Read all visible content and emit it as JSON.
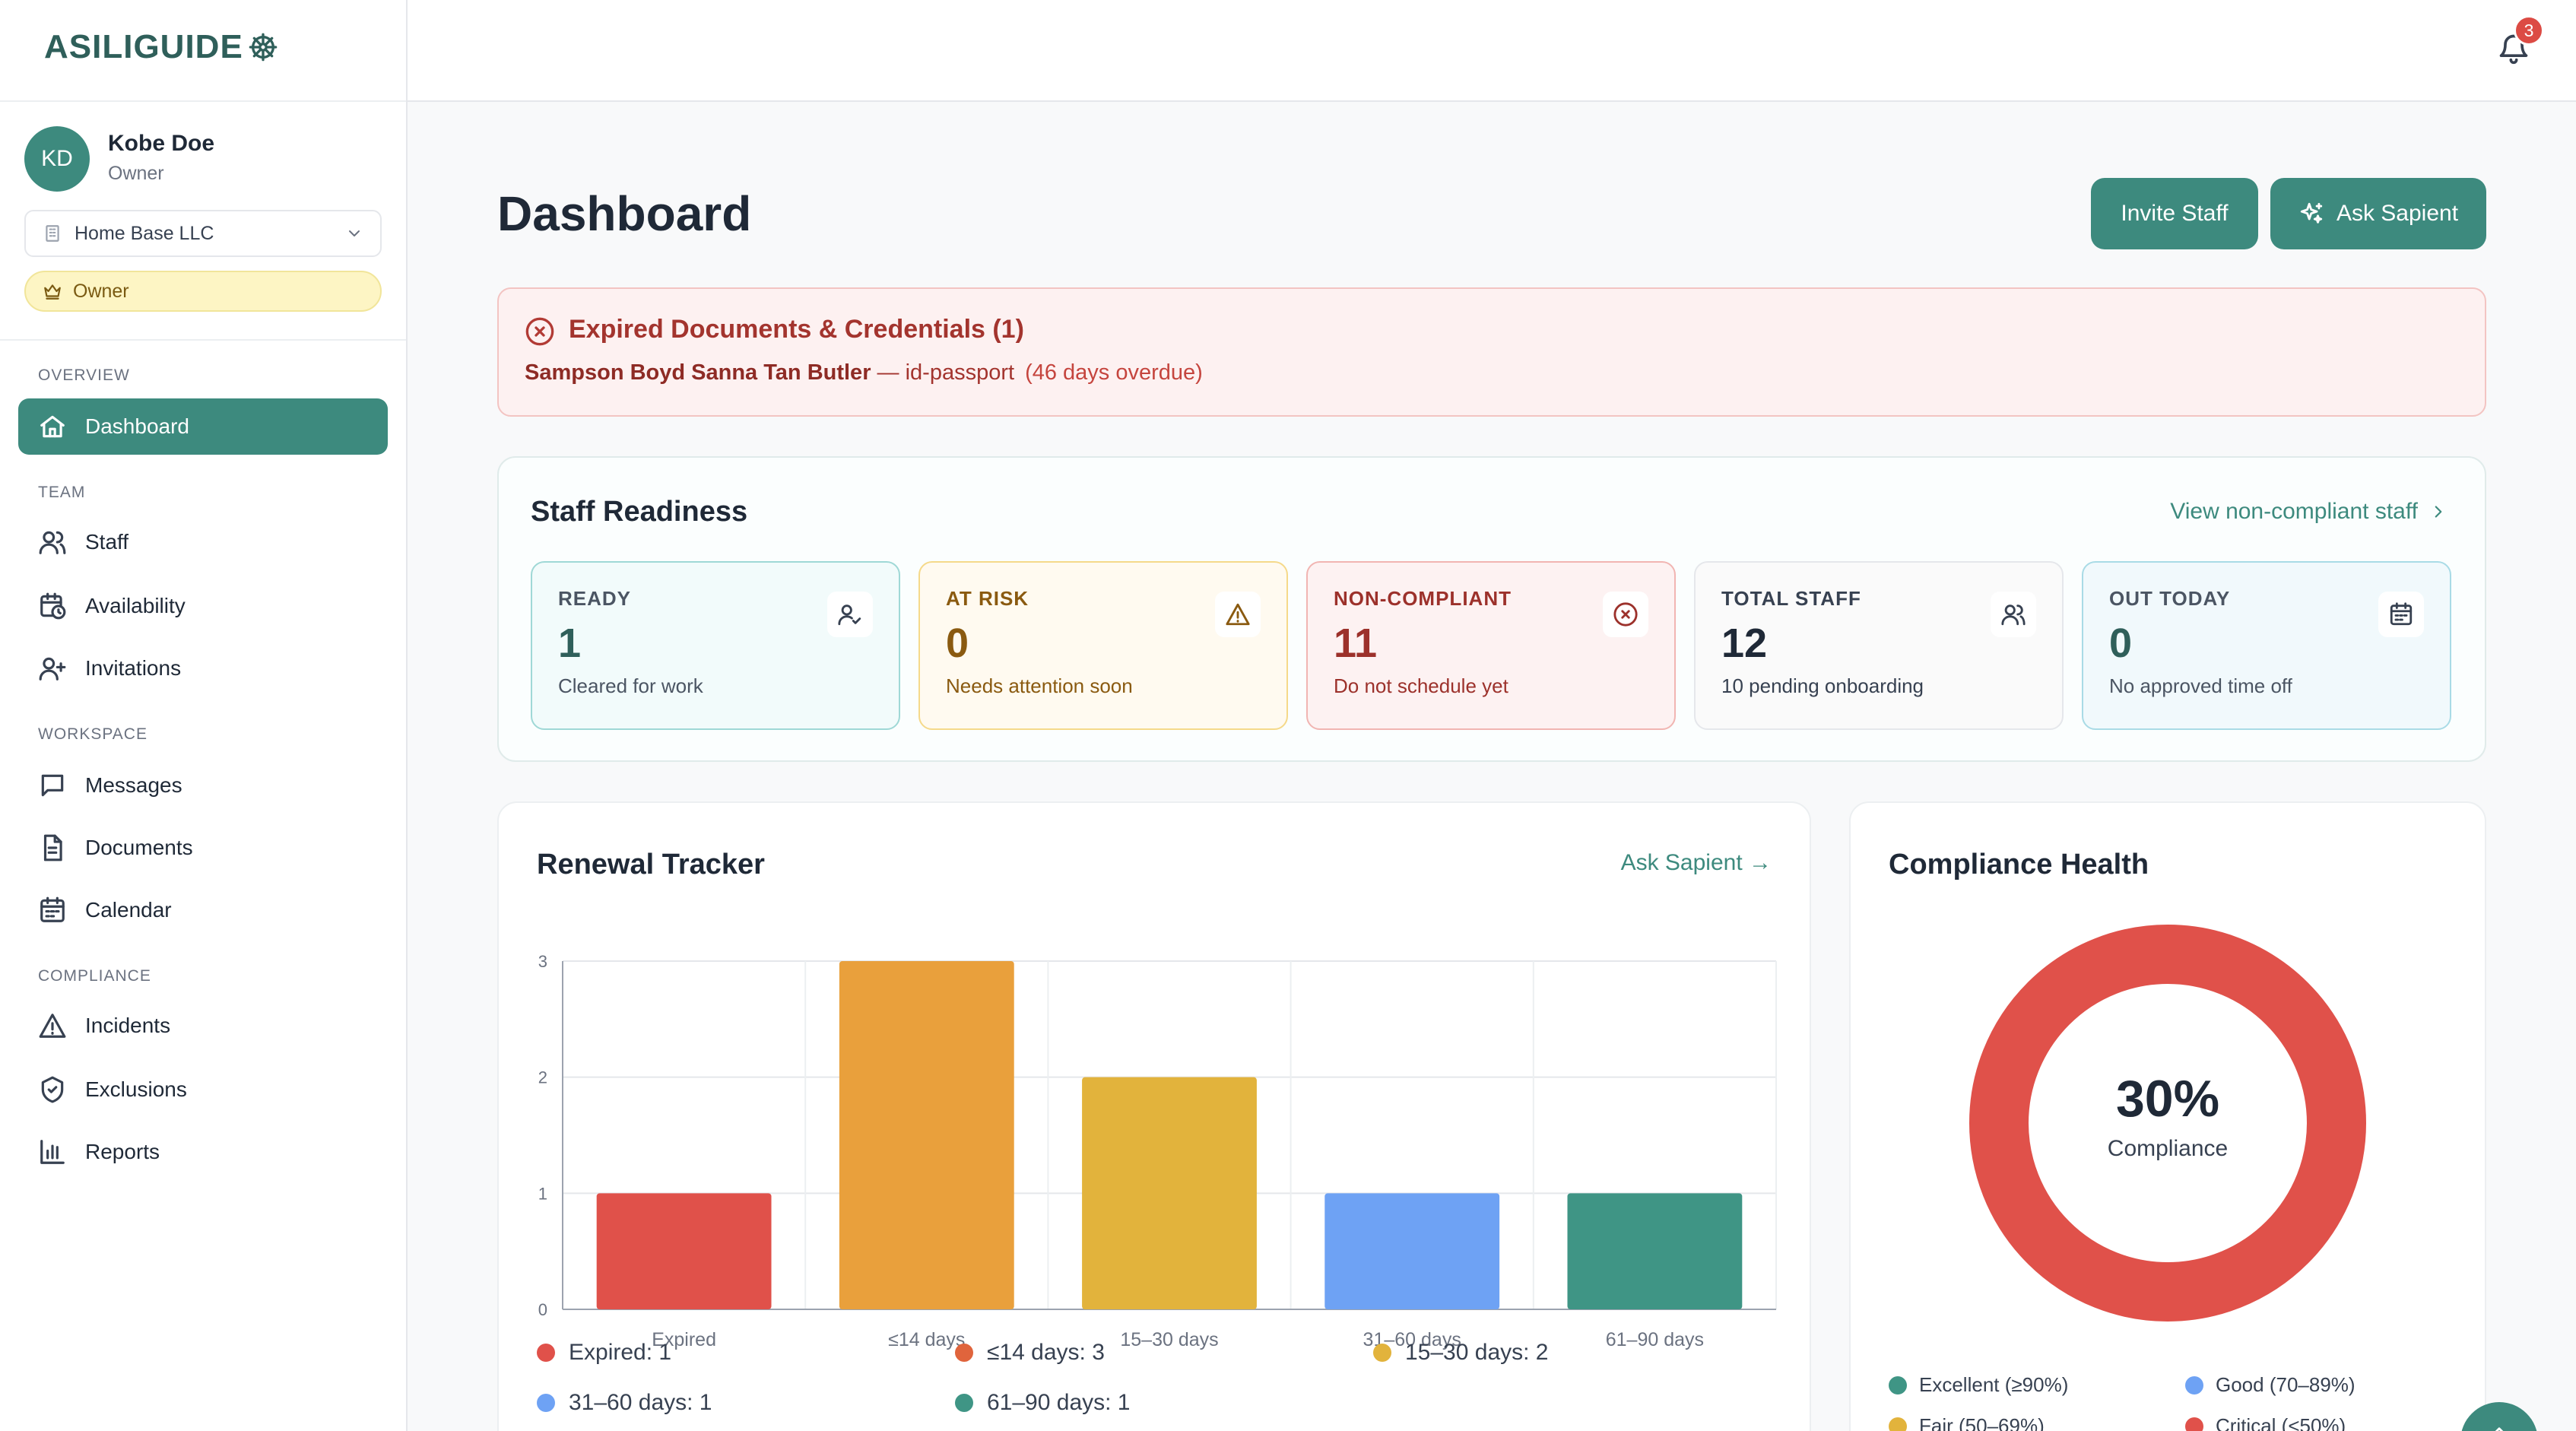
{
  "app": {
    "logo_text": "ASILIGUIDE"
  },
  "user": {
    "initials": "KD",
    "name": "Kobe Doe",
    "role": "Owner"
  },
  "org": {
    "selected": "Home Base LLC"
  },
  "role_badge": "Owner",
  "nav": {
    "sections": {
      "overview": "OVERVIEW",
      "team": "TEAM",
      "workspace": "WORKSPACE",
      "compliance": "COMPLIANCE"
    },
    "items": [
      {
        "label": "Dashboard",
        "icon": "home-icon",
        "active": true
      },
      {
        "label": "Staff",
        "icon": "users-icon"
      },
      {
        "label": "Availability",
        "icon": "calendar-clock-icon"
      },
      {
        "label": "Invitations",
        "icon": "user-plus-icon"
      },
      {
        "label": "Messages",
        "icon": "message-icon"
      },
      {
        "label": "Documents",
        "icon": "document-icon"
      },
      {
        "label": "Calendar",
        "icon": "calendar-icon"
      },
      {
        "label": "Incidents",
        "icon": "warning-icon"
      },
      {
        "label": "Exclusions",
        "icon": "shield-icon"
      },
      {
        "label": "Reports",
        "icon": "bar-chart-icon"
      }
    ]
  },
  "topbar": {
    "notification_count": "3"
  },
  "page": {
    "title": "Dashboard"
  },
  "actions": {
    "invite": "Invite Staff",
    "ask": "Ask Sapient"
  },
  "alert": {
    "title": "Expired Documents & Credentials (1)",
    "name": "Sampson Boyd Sanna Tan Butler",
    "separator": " — ",
    "doc": "id-passport",
    "overdue": "(46 days overdue)"
  },
  "readiness": {
    "title": "Staff Readiness",
    "link": "View non-compliant staff",
    "cards": [
      {
        "label": "READY",
        "value": "1",
        "sub": "Cleared for work",
        "icon": "user-check-icon"
      },
      {
        "label": "AT RISK",
        "value": "0",
        "sub": "Needs attention soon",
        "icon": "warning-icon"
      },
      {
        "label": "NON-COMPLIANT",
        "value": "11",
        "sub": "Do not schedule yet",
        "icon": "x-circle-icon"
      },
      {
        "label": "TOTAL STAFF",
        "value": "12",
        "sub": "10 pending onboarding",
        "icon": "users-icon"
      },
      {
        "label": "OUT TODAY",
        "value": "0",
        "sub": "No approved time off",
        "icon": "calendar-icon"
      }
    ]
  },
  "renewal": {
    "title": "Renewal Tracker",
    "link": "Ask Sapient →",
    "legend": [
      "Expired: 1",
      "≤14 days: 3",
      "15–30 days: 2",
      "31–60 days: 1",
      "61–90 days: 1"
    ]
  },
  "chart_data": {
    "type": "bar",
    "title": "Renewal Tracker",
    "categories": [
      "Expired",
      "≤14 days",
      "15–30 days",
      "31–60 days",
      "61–90 days"
    ],
    "values": [
      1,
      3,
      2,
      1,
      1
    ],
    "colors": [
      "#e0514a",
      "#e9a03c",
      "#e2b33c",
      "#6ea2f4",
      "#3f9585"
    ],
    "yticks": [
      "0",
      "1",
      "2",
      "3"
    ],
    "ylim": [
      0,
      3
    ],
    "grid": true,
    "legend": "bottom"
  },
  "health": {
    "title": "Compliance Health",
    "value": "30%",
    "label": "Compliance",
    "ring_fraction": 1,
    "ring_color": "#e0514a",
    "legend": [
      {
        "label": "Excellent (≥90%)",
        "color": "#3f9585"
      },
      {
        "label": "Good (70–89%)",
        "color": "#6ea2f4"
      },
      {
        "label": "Fair (50–69%)",
        "color": "#e2b33c"
      },
      {
        "label": "Critical (<50%)",
        "color": "#e0514a"
      }
    ]
  }
}
